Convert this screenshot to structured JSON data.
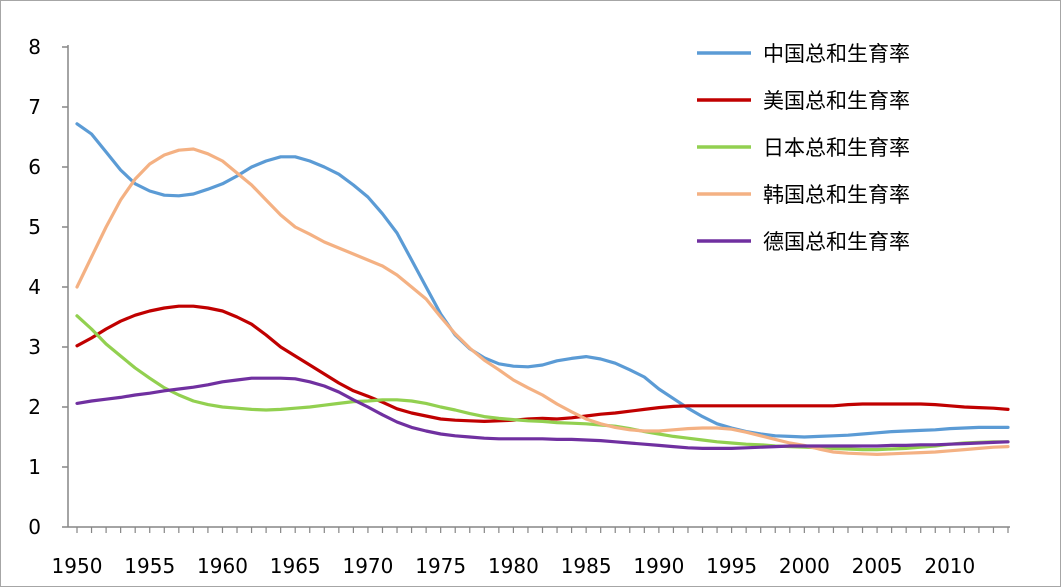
{
  "chart_data": {
    "type": "line",
    "title": "",
    "xlabel": "",
    "ylabel": "",
    "xlim": [
      1950,
      2014
    ],
    "ylim": [
      0,
      8
    ],
    "yticks": [
      0,
      1,
      2,
      3,
      4,
      5,
      6,
      7,
      8
    ],
    "xticks": [
      1950,
      1955,
      1960,
      1965,
      1970,
      1975,
      1980,
      1985,
      1990,
      1995,
      2000,
      2005,
      2010
    ],
    "grid": false,
    "legend_position": "top-right",
    "x": [
      1950,
      1951,
      1952,
      1953,
      1954,
      1955,
      1956,
      1957,
      1958,
      1959,
      1960,
      1961,
      1962,
      1963,
      1964,
      1965,
      1966,
      1967,
      1968,
      1969,
      1970,
      1971,
      1972,
      1973,
      1974,
      1975,
      1976,
      1977,
      1978,
      1979,
      1980,
      1981,
      1982,
      1983,
      1984,
      1985,
      1986,
      1987,
      1988,
      1989,
      1990,
      1991,
      1992,
      1993,
      1994,
      1995,
      1996,
      1997,
      1998,
      1999,
      2000,
      2001,
      2002,
      2003,
      2004,
      2005,
      2006,
      2007,
      2008,
      2009,
      2010,
      2011,
      2012,
      2013,
      2014
    ],
    "series": [
      {
        "name": "中国总和生育率",
        "color": "#5b9bd5",
        "values": [
          6.72,
          6.55,
          6.25,
          5.95,
          5.72,
          5.6,
          5.53,
          5.52,
          5.55,
          5.63,
          5.72,
          5.85,
          6.0,
          6.1,
          6.17,
          6.17,
          6.1,
          6.0,
          5.88,
          5.7,
          5.5,
          5.22,
          4.9,
          4.45,
          4.0,
          3.55,
          3.2,
          2.97,
          2.82,
          2.72,
          2.68,
          2.67,
          2.7,
          2.77,
          2.81,
          2.84,
          2.8,
          2.73,
          2.62,
          2.5,
          2.3,
          2.14,
          1.98,
          1.84,
          1.72,
          1.65,
          1.59,
          1.55,
          1.52,
          1.51,
          1.5,
          1.51,
          1.52,
          1.53,
          1.55,
          1.57,
          1.59,
          1.6,
          1.61,
          1.62,
          1.64,
          1.65,
          1.66,
          1.66,
          1.66
        ]
      },
      {
        "name": "美国总和生育率",
        "color": "#c00000",
        "values": [
          3.02,
          3.15,
          3.3,
          3.43,
          3.53,
          3.6,
          3.65,
          3.68,
          3.68,
          3.65,
          3.6,
          3.5,
          3.38,
          3.2,
          3.0,
          2.85,
          2.7,
          2.55,
          2.4,
          2.27,
          2.18,
          2.08,
          1.97,
          1.9,
          1.85,
          1.8,
          1.78,
          1.77,
          1.76,
          1.77,
          1.78,
          1.8,
          1.81,
          1.8,
          1.82,
          1.85,
          1.88,
          1.9,
          1.93,
          1.96,
          1.99,
          2.01,
          2.02,
          2.02,
          2.02,
          2.02,
          2.02,
          2.02,
          2.02,
          2.02,
          2.02,
          2.02,
          2.02,
          2.04,
          2.05,
          2.05,
          2.05,
          2.05,
          2.05,
          2.04,
          2.02,
          2.0,
          1.99,
          1.98,
          1.96
        ]
      },
      {
        "name": "日本总和生育率",
        "color": "#92d050",
        "values": [
          3.52,
          3.3,
          3.05,
          2.85,
          2.65,
          2.48,
          2.32,
          2.2,
          2.1,
          2.04,
          2.0,
          1.98,
          1.96,
          1.95,
          1.96,
          1.98,
          2.0,
          2.03,
          2.06,
          2.09,
          2.1,
          2.12,
          2.12,
          2.1,
          2.06,
          2.0,
          1.95,
          1.89,
          1.84,
          1.81,
          1.79,
          1.77,
          1.76,
          1.74,
          1.73,
          1.72,
          1.7,
          1.68,
          1.64,
          1.59,
          1.55,
          1.51,
          1.48,
          1.45,
          1.42,
          1.4,
          1.38,
          1.37,
          1.35,
          1.34,
          1.33,
          1.32,
          1.31,
          1.3,
          1.29,
          1.29,
          1.3,
          1.31,
          1.33,
          1.35,
          1.38,
          1.4,
          1.41,
          1.42,
          1.42
        ]
      },
      {
        "name": "韩国总和生育率",
        "color": "#f4b183",
        "values": [
          4.0,
          4.5,
          5.0,
          5.45,
          5.8,
          6.05,
          6.2,
          6.28,
          6.3,
          6.22,
          6.1,
          5.9,
          5.7,
          5.45,
          5.2,
          5.0,
          4.88,
          4.75,
          4.65,
          4.55,
          4.45,
          4.35,
          4.2,
          4.0,
          3.8,
          3.5,
          3.22,
          2.98,
          2.78,
          2.62,
          2.45,
          2.32,
          2.2,
          2.05,
          1.92,
          1.8,
          1.72,
          1.66,
          1.62,
          1.6,
          1.6,
          1.62,
          1.64,
          1.65,
          1.65,
          1.63,
          1.58,
          1.52,
          1.46,
          1.4,
          1.36,
          1.3,
          1.25,
          1.23,
          1.22,
          1.21,
          1.22,
          1.23,
          1.24,
          1.25,
          1.27,
          1.29,
          1.31,
          1.33,
          1.34
        ]
      },
      {
        "name": "德国总和生育率",
        "color": "#7030a0",
        "values": [
          2.06,
          2.1,
          2.13,
          2.16,
          2.2,
          2.23,
          2.27,
          2.3,
          2.33,
          2.37,
          2.42,
          2.45,
          2.48,
          2.48,
          2.48,
          2.47,
          2.42,
          2.35,
          2.25,
          2.12,
          2.0,
          1.87,
          1.75,
          1.66,
          1.6,
          1.55,
          1.52,
          1.5,
          1.48,
          1.47,
          1.47,
          1.47,
          1.47,
          1.46,
          1.46,
          1.45,
          1.44,
          1.42,
          1.4,
          1.38,
          1.36,
          1.34,
          1.32,
          1.31,
          1.31,
          1.31,
          1.32,
          1.33,
          1.34,
          1.35,
          1.35,
          1.35,
          1.35,
          1.35,
          1.35,
          1.35,
          1.36,
          1.36,
          1.37,
          1.37,
          1.38,
          1.39,
          1.4,
          1.41,
          1.42
        ]
      }
    ]
  }
}
